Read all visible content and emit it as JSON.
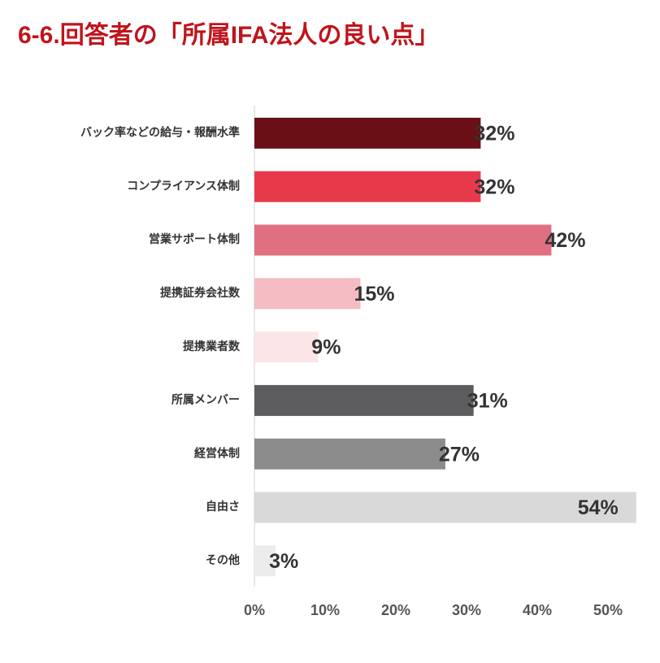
{
  "chart_data": {
    "type": "bar",
    "orientation": "horizontal",
    "title": "6-6.回答者の「所属IFA法人の良い点」",
    "categories": [
      "バック率などの給与・報酬水準",
      "コンプライアンス体制",
      "営業サポート体制",
      "提携証券会社数",
      "提携業者数",
      "所属メンバー",
      "経営体制",
      "自由さ",
      "その他"
    ],
    "values": [
      32,
      32,
      42,
      15,
      9,
      31,
      27,
      54,
      3
    ],
    "value_labels": [
      "32%",
      "32%",
      "42%",
      "15%",
      "9%",
      "31%",
      "27%",
      "54%",
      "3%"
    ],
    "colors": [
      "#6b0f16",
      "#e8394a",
      "#e07080",
      "#f5bcc3",
      "#fbe5e6",
      "#5d5d5f",
      "#8c8c8c",
      "#d9d9d9",
      "#ececec"
    ],
    "xlim": [
      0,
      50
    ],
    "xticks": [
      {
        "value": 0,
        "label": "0%"
      },
      {
        "value": 10,
        "label": "10%"
      },
      {
        "value": 20,
        "label": "20%"
      },
      {
        "value": 30,
        "label": "30%"
      },
      {
        "value": 40,
        "label": "40%"
      },
      {
        "value": 50,
        "label": "50%"
      }
    ],
    "grid": false
  }
}
